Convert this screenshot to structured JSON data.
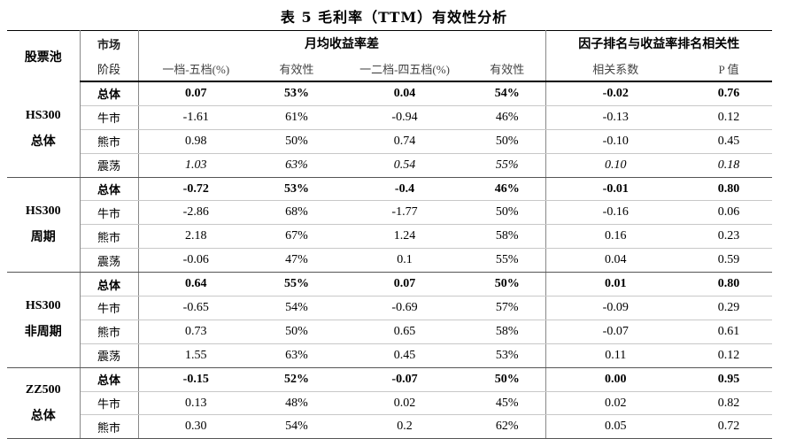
{
  "title": "表 5  毛利率（TTM）有效性分析",
  "headers": {
    "pool": "股票池",
    "stage_line1": "市场",
    "stage_line2": "阶段",
    "group_monthly": "月均收益率差",
    "group_corr": "因子排名与收益率排名相关性",
    "sub": [
      "一档-五档(%)",
      "有效性",
      "一二档-四五档(%)",
      "有效性",
      "相关系数",
      "P 值"
    ]
  },
  "groups": [
    {
      "pool_line1": "HS300",
      "pool_line2": "总体",
      "rows": [
        {
          "stage": "总体",
          "style": "total",
          "v": [
            "0.07",
            "53%",
            "0.04",
            "54%",
            "-0.02",
            "0.76"
          ]
        },
        {
          "stage": "牛市",
          "style": "",
          "v": [
            "-1.61",
            "61%",
            "-0.94",
            "46%",
            "-0.13",
            "0.12"
          ]
        },
        {
          "stage": "熊市",
          "style": "",
          "v": [
            "0.98",
            "50%",
            "0.74",
            "50%",
            "-0.10",
            "0.45"
          ]
        },
        {
          "stage": "震荡",
          "style": "osc",
          "v": [
            "1.03",
            "63%",
            "0.54",
            "55%",
            "0.10",
            "0.18"
          ]
        }
      ]
    },
    {
      "pool_line1": "HS300",
      "pool_line2": "周期",
      "rows": [
        {
          "stage": "总体",
          "style": "total",
          "v": [
            "-0.72",
            "53%",
            "-0.4",
            "46%",
            "-0.01",
            "0.80"
          ]
        },
        {
          "stage": "牛市",
          "style": "",
          "v": [
            "-2.86",
            "68%",
            "-1.77",
            "50%",
            "-0.16",
            "0.06"
          ]
        },
        {
          "stage": "熊市",
          "style": "",
          "v": [
            "2.18",
            "67%",
            "1.24",
            "58%",
            "0.16",
            "0.23"
          ]
        },
        {
          "stage": "震荡",
          "style": "",
          "v": [
            "-0.06",
            "47%",
            "0.1",
            "55%",
            "0.04",
            "0.59"
          ]
        }
      ]
    },
    {
      "pool_line1": "HS300",
      "pool_line2": "非周期",
      "rows": [
        {
          "stage": "总体",
          "style": "total",
          "v": [
            "0.64",
            "55%",
            "0.07",
            "50%",
            "0.01",
            "0.80"
          ]
        },
        {
          "stage": "牛市",
          "style": "",
          "v": [
            "-0.65",
            "54%",
            "-0.69",
            "57%",
            "-0.09",
            "0.29"
          ]
        },
        {
          "stage": "熊市",
          "style": "",
          "v": [
            "0.73",
            "50%",
            "0.65",
            "58%",
            "-0.07",
            "0.61"
          ]
        },
        {
          "stage": "震荡",
          "style": "",
          "v": [
            "1.55",
            "63%",
            "0.45",
            "53%",
            "0.11",
            "0.12"
          ]
        }
      ]
    },
    {
      "pool_line1": "ZZ500",
      "pool_line2": "总体",
      "rows": [
        {
          "stage": "总体",
          "style": "total",
          "v": [
            "-0.15",
            "52%",
            "-0.07",
            "50%",
            "0.00",
            "0.95"
          ]
        },
        {
          "stage": "牛市",
          "style": "",
          "v": [
            "0.13",
            "48%",
            "0.02",
            "45%",
            "0.02",
            "0.82"
          ]
        },
        {
          "stage": "熊市",
          "style": "",
          "v": [
            "0.30",
            "54%",
            "0.2",
            "62%",
            "0.05",
            "0.72"
          ]
        }
      ]
    }
  ]
}
